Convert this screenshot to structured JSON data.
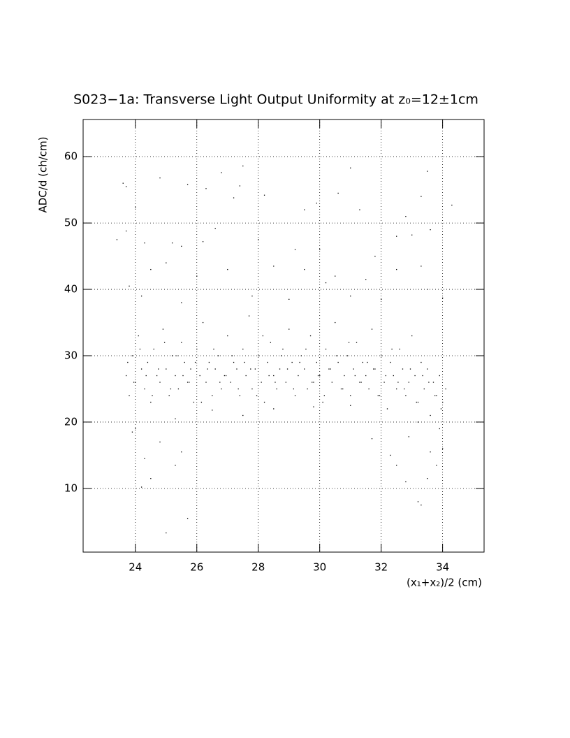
{
  "chart_data": {
    "type": "scatter",
    "title": "S023−1a: Transverse Light Output Uniformity at z₀=12±1cm",
    "x_label": "(x₁+x₂)/2 (cm)",
    "y_label": "ADC/d (ch/cm)",
    "color": "#000000",
    "grid": true,
    "xlim": [
      22.3,
      35.35
    ],
    "ylim": [
      0.4,
      65.6
    ],
    "xticks": [
      24,
      26,
      28,
      30,
      32,
      34
    ],
    "yticks": [
      10,
      20,
      30,
      40,
      50,
      60
    ],
    "x": [
      23.6,
      23.7,
      24.8,
      25.7,
      26.3,
      26.8,
      27.5,
      27.4,
      27.2,
      28.2,
      29.5,
      29.9,
      30.6,
      31,
      31.3,
      32.8,
      33.3,
      33.5,
      34.3,
      24,
      24.3,
      23.4,
      23.7,
      26.2,
      26.6,
      25.2,
      25.5,
      28,
      29.2,
      30,
      31.8,
      32.5,
      33,
      33.6,
      24.5,
      25,
      26,
      27,
      28.5,
      29.5,
      30.5,
      31.5,
      32.5,
      33.3,
      23.8,
      24.2,
      25.5,
      27.8,
      29,
      30.2,
      31,
      32,
      33.5,
      34,
      24,
      24.3,
      24.5,
      24.2,
      24.8,
      25.3,
      25.5,
      25.7,
      25,
      23.9,
      32.3,
      32.5,
      32.8,
      33.2,
      33.3,
      33.5,
      33.8,
      33.6,
      34,
      33.9,
      33.2,
      32.9,
      31.7,
      25.3,
      26.5,
      27.5,
      28.5,
      29.8,
      31,
      23.7,
      23.8,
      23.9,
      24.0,
      24.1,
      24.2,
      24.3,
      24.4,
      24.5,
      24.6,
      24.7,
      24.8,
      24.9,
      25.0,
      25.1,
      25.2,
      25.3,
      25.4,
      25.5,
      25.6,
      25.7,
      25.8,
      25.9,
      26.0,
      26.1,
      26.2,
      26.3,
      26.4,
      26.5,
      26.6,
      26.7,
      26.8,
      26.9,
      27.0,
      27.1,
      27.2,
      27.3,
      27.4,
      27.5,
      27.6,
      27.7,
      27.8,
      27.9,
      28.0,
      28.1,
      28.2,
      28.3,
      28.4,
      28.5,
      28.6,
      28.7,
      28.8,
      28.9,
      29.0,
      29.1,
      29.2,
      29.3,
      29.4,
      29.5,
      29.6,
      29.7,
      29.8,
      29.9,
      30.0,
      30.1,
      30.2,
      30.3,
      30.4,
      30.5,
      30.6,
      30.7,
      30.8,
      30.9,
      31.0,
      31.1,
      31.2,
      31.3,
      31.4,
      31.5,
      31.6,
      31.7,
      31.8,
      31.9,
      32.0,
      32.1,
      32.2,
      32.3,
      32.4,
      32.5,
      32.6,
      32.7,
      32.8,
      32.9,
      33.0,
      33.1,
      33.2,
      33.3,
      33.4,
      33.5,
      33.6,
      33.7,
      33.8,
      33.9,
      34.0,
      34.1,
      23.75,
      23.95,
      24.15,
      24.35,
      24.55,
      24.75,
      24.95,
      25.15,
      25.35,
      25.55,
      25.75,
      25.95,
      26.15,
      26.35,
      26.55,
      26.75,
      26.95,
      27.15,
      27.35,
      27.55,
      27.75,
      27.95,
      28.15,
      28.35,
      28.55,
      28.75,
      28.95,
      29.15,
      29.35,
      29.55,
      29.75,
      29.95,
      30.15,
      30.35,
      30.55,
      30.75,
      30.95,
      31.15,
      31.35,
      31.55,
      31.75,
      31.95,
      32.15,
      32.35,
      32.55,
      32.75,
      32.95,
      33.15,
      33.35,
      33.55,
      33.75,
      33.95
    ],
    "values": [
      56,
      55.5,
      56.8,
      55.8,
      55.2,
      57.6,
      58.6,
      55.6,
      53.8,
      54.2,
      52,
      53,
      54.5,
      58.3,
      52,
      51,
      54,
      57.8,
      52.7,
      52.3,
      47,
      47.5,
      48.8,
      47.2,
      49.2,
      47,
      46.5,
      47.5,
      46,
      46,
      45,
      48,
      48.2,
      49,
      43,
      44,
      42,
      43,
      43.5,
      43,
      42,
      41.5,
      43,
      43.5,
      40.5,
      39,
      38,
      39,
      38.5,
      41,
      39,
      38.5,
      40,
      38.7,
      19,
      14.5,
      11.5,
      10.2,
      17,
      13.5,
      15.5,
      5.5,
      3.3,
      18.5,
      15,
      13.5,
      11,
      8,
      7.5,
      11.5,
      13.5,
      15.5,
      16,
      19,
      20,
      17.8,
      17.5,
      20.5,
      21.8,
      21,
      22,
      22.3,
      22.5,
      27,
      24,
      30,
      26,
      33,
      28,
      25,
      29,
      23,
      31,
      27,
      26,
      34,
      28,
      24,
      30,
      27,
      25,
      32,
      29,
      26,
      28,
      23,
      31,
      27,
      35,
      26,
      29,
      24,
      28,
      30,
      25,
      27,
      33,
      26,
      29,
      28,
      24,
      31,
      27,
      36,
      25,
      28,
      30,
      26,
      23,
      29,
      32,
      27,
      25,
      28,
      31,
      26,
      34,
      29,
      24,
      27,
      30,
      28,
      25,
      33,
      26,
      29,
      27,
      23,
      31,
      28,
      26,
      35,
      29,
      25,
      27,
      30,
      24,
      28,
      32,
      26,
      29,
      27,
      25,
      34,
      28,
      24,
      30,
      26,
      22,
      29,
      27,
      25,
      31,
      28,
      24,
      26,
      33,
      27,
      23,
      29,
      25,
      28,
      21,
      26,
      24,
      27,
      23,
      25,
      29,
      26,
      31,
      27,
      24,
      28,
      32,
      25,
      30,
      27,
      26,
      29,
      23,
      28,
      31,
      26,
      27,
      30,
      25,
      29,
      28,
      24,
      33,
      27,
      26,
      30,
      28,
      25,
      29,
      31,
      26,
      27,
      24,
      28,
      30,
      25,
      32,
      27,
      26,
      29,
      28,
      24,
      27,
      31,
      26,
      25,
      28,
      23,
      27,
      26,
      24,
      22
    ]
  }
}
